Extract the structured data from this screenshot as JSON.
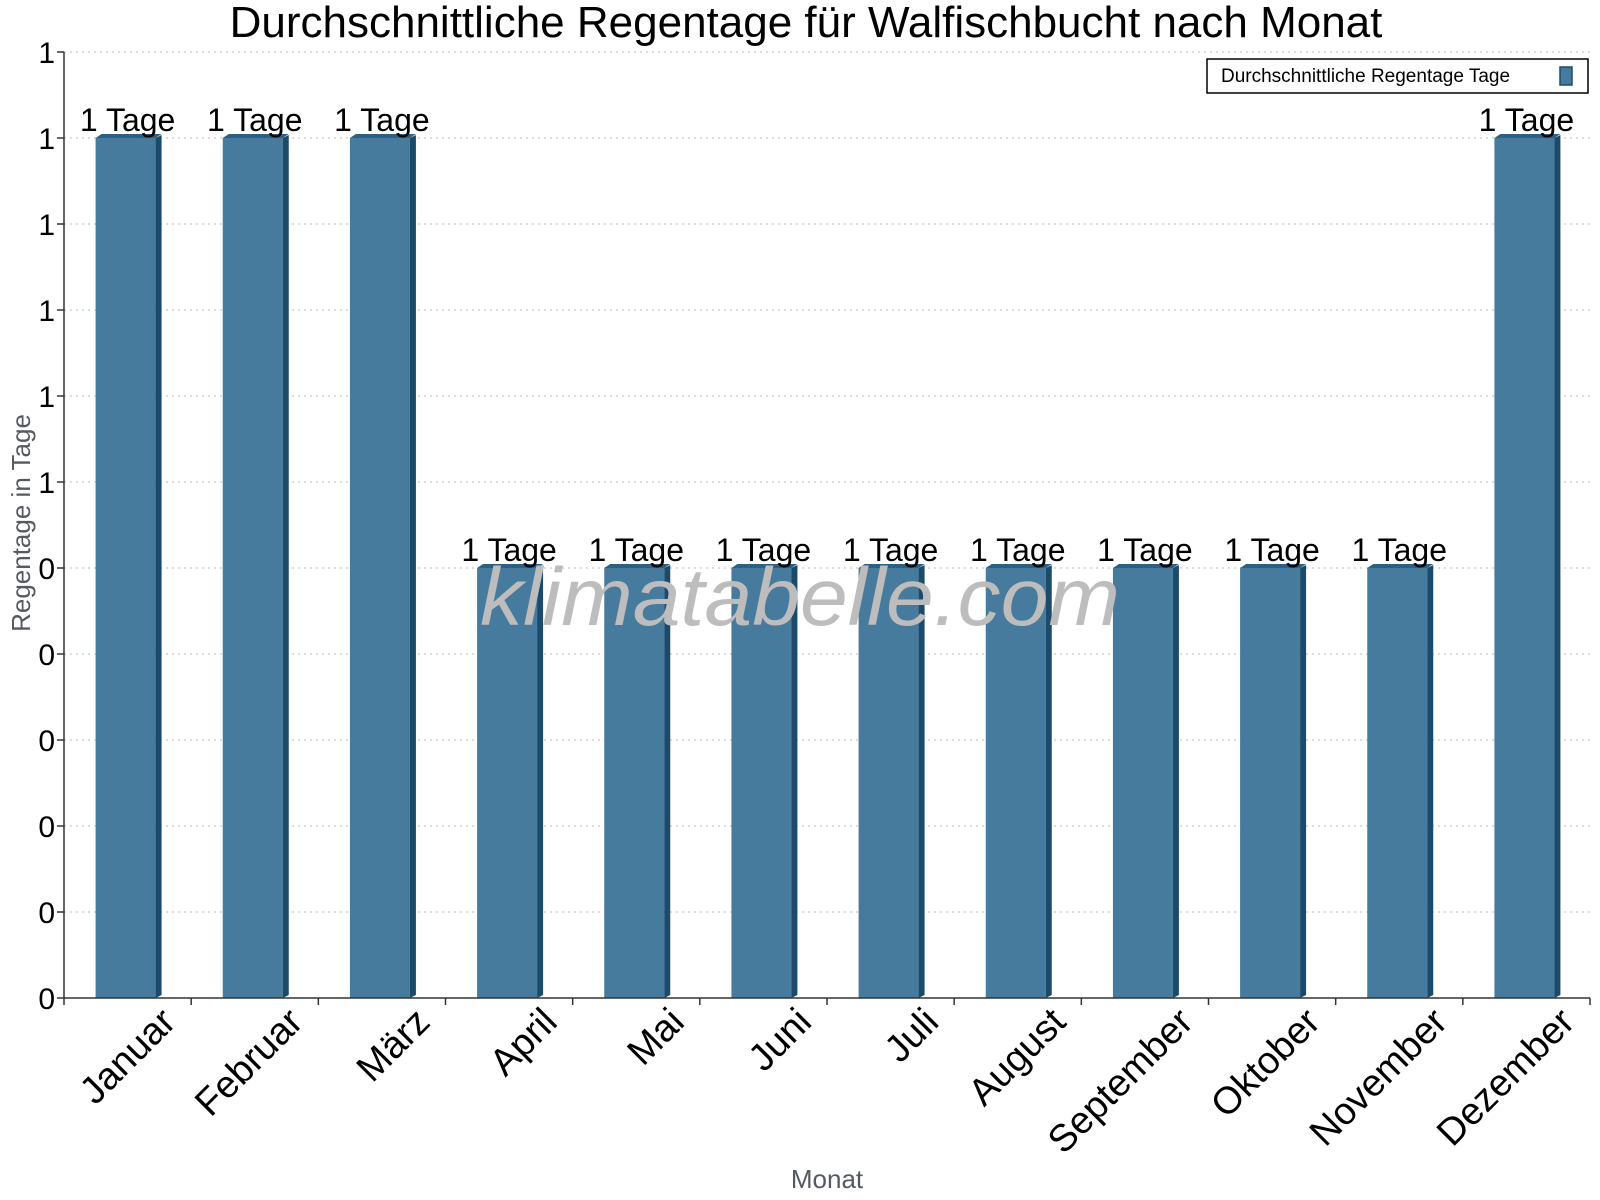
{
  "colors": {
    "bar_front": "#477b9e",
    "bar_side": "#1c4a6b",
    "bar_top": "#2d5f82",
    "grid": "#c8c8c8",
    "axis": "#333333"
  },
  "watermark": "klimatabelle.com",
  "chart_data": {
    "type": "bar",
    "title": "Durchschnittliche Regentage für Walfischbucht nach Monat",
    "xlabel": "Monat",
    "ylabel": "Regentage in Tage",
    "categories": [
      "Januar",
      "Februar",
      "März",
      "April",
      "Mai",
      "Juni",
      "Juli",
      "August",
      "September",
      "Oktober",
      "November",
      "Dezember"
    ],
    "series": [
      {
        "name": "Durchschnittliche Regentage Tage",
        "values": [
          1,
          1,
          1,
          0.5,
          0.5,
          0.5,
          0.5,
          0.5,
          0.5,
          0.5,
          0.5,
          1
        ],
        "labels": [
          "1 Tage",
          "1 Tage",
          "1 Tage",
          "1 Tage",
          "1 Tage",
          "1 Tage",
          "1 Tage",
          "1 Tage",
          "1 Tage",
          "1 Tage",
          "1 Tage",
          "1 Tage"
        ]
      }
    ],
    "ylim": [
      0,
      1.1
    ],
    "yticks": [
      0,
      0.1,
      0.2,
      0.3,
      0.4,
      0.5,
      0.6,
      0.7,
      0.8,
      0.9,
      1.0,
      1.1
    ],
    "ytick_labels": [
      "0",
      "0",
      "0",
      "0",
      "0",
      "0",
      "1",
      "1",
      "1",
      "1",
      "1",
      "1"
    ],
    "grid": "horizontal-dotted",
    "legend": "top-right"
  }
}
